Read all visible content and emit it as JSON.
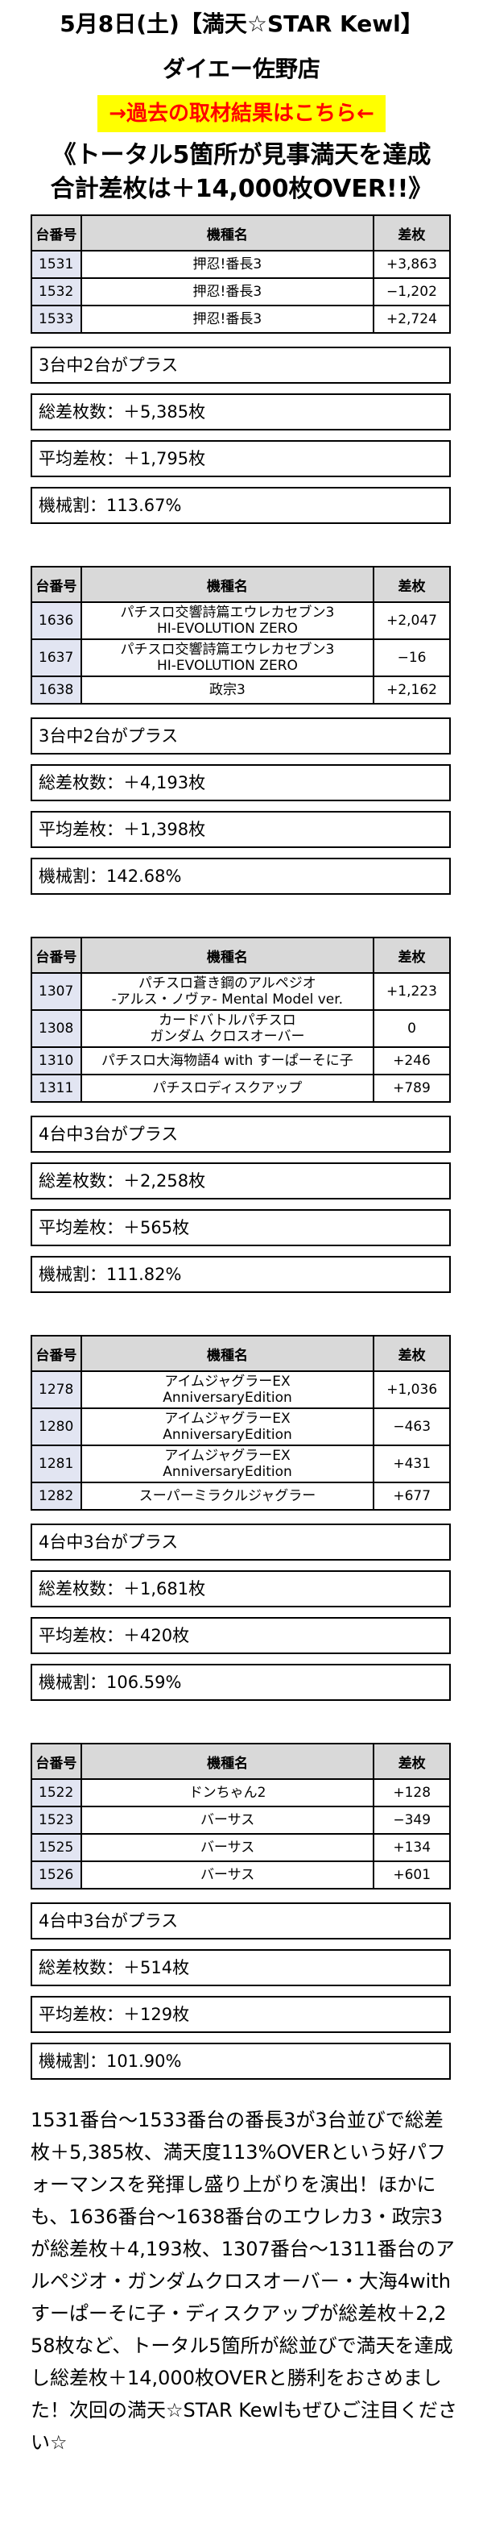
{
  "header": {
    "date": "5月8日(土)",
    "event": "【満天☆STAR Kewl】",
    "store": "ダイエー佐野店",
    "link_label": "→過去の取材結果はこちら←",
    "headline_1": "《トータル5箇所が見事満天を達成",
    "headline_2": "合計差枚は＋14,000枚OVER!!》"
  },
  "table_headers": {
    "num": "台番号",
    "name": "機種名",
    "diff": "差枚"
  },
  "sections": [
    {
      "rows": [
        {
          "num": "1531",
          "name": [
            "押忍!番長3"
          ],
          "diff": "+3,863"
        },
        {
          "num": "1532",
          "name": [
            "押忍!番長3"
          ],
          "diff": "−1,202"
        },
        {
          "num": "1533",
          "name": [
            "押忍!番長3"
          ],
          "diff": "+2,724"
        }
      ],
      "summary": "3台中2台がプラス",
      "total": "総差枚数：＋5,385枚",
      "average": "平均差枚：＋1,795枚",
      "rate": "機械割：113.67%"
    },
    {
      "rows": [
        {
          "num": "1636",
          "name": [
            "パチスロ交響詩篇エウレカセブン3",
            "HI-EVOLUTION ZERO"
          ],
          "diff": "+2,047"
        },
        {
          "num": "1637",
          "name": [
            "パチスロ交響詩篇エウレカセブン3",
            "HI-EVOLUTION ZERO"
          ],
          "diff": "−16"
        },
        {
          "num": "1638",
          "name": [
            "政宗3"
          ],
          "diff": "+2,162"
        }
      ],
      "summary": "3台中2台がプラス",
      "total": "総差枚数：＋4,193枚",
      "average": "平均差枚：＋1,398枚",
      "rate": "機械割：142.68%"
    },
    {
      "rows": [
        {
          "num": "1307",
          "name": [
            "パチスロ蒼き鋼のアルペジオ",
            "-アルス・ノヴァ- Mental Model ver."
          ],
          "diff": "+1,223"
        },
        {
          "num": "1308",
          "name": [
            "カードバトルパチスロ",
            "ガンダム クロスオーバー"
          ],
          "diff": "0"
        },
        {
          "num": "1310",
          "name": [
            "パチスロ大海物語4 with すーぱーそに子"
          ],
          "diff": "+246"
        },
        {
          "num": "1311",
          "name": [
            "パチスロディスクアップ"
          ],
          "diff": "+789"
        }
      ],
      "summary": "4台中3台がプラス",
      "total": "総差枚数：＋2,258枚",
      "average": "平均差枚：＋565枚",
      "rate": "機械割：111.82%"
    },
    {
      "rows": [
        {
          "num": "1278",
          "name": [
            "アイムジャグラーEX",
            "AnniversaryEdition"
          ],
          "diff": "+1,036"
        },
        {
          "num": "1280",
          "name": [
            "アイムジャグラーEX",
            "AnniversaryEdition"
          ],
          "diff": "−463"
        },
        {
          "num": "1281",
          "name": [
            "アイムジャグラーEX",
            "AnniversaryEdition"
          ],
          "diff": "+431"
        },
        {
          "num": "1282",
          "name": [
            "スーパーミラクルジャグラー"
          ],
          "diff": "+677"
        }
      ],
      "summary": "4台中3台がプラス",
      "total": "総差枚数：＋1,681枚",
      "average": "平均差枚：＋420枚",
      "rate": "機械割：106.59%"
    },
    {
      "rows": [
        {
          "num": "1522",
          "name": [
            "ドンちゃん2"
          ],
          "diff": "+128"
        },
        {
          "num": "1523",
          "name": [
            "バーサス"
          ],
          "diff": "−349"
        },
        {
          "num": "1525",
          "name": [
            "バーサス"
          ],
          "diff": "+134"
        },
        {
          "num": "1526",
          "name": [
            "バーサス"
          ],
          "diff": "+601"
        }
      ],
      "summary": "4台中3台がプラス",
      "total": "総差枚数：＋514枚",
      "average": "平均差枚：＋129枚",
      "rate": "機械割：101.90%"
    }
  ],
  "body_text": "1531番台〜1533番台の番長3が3台並びで総差枚＋5,385枚、満天度113%OVERという好パフォーマンスを発揮し盛り上がりを演出！ほかにも、1636番台〜1638番台のエウレカ3・政宗3が総差枚＋4,193枚、1307番台〜1311番台のアルペジオ・ガンダムクロスオーバー・大海4withすーぱーそに子・ディスクアップが総差枚＋2,258枚など、トータル5箇所が総並びで満天を達成し総差枚＋14,000枚OVERと勝利をおさめました！次回の満天☆STAR Kewlもぜひご注目ください☆"
}
